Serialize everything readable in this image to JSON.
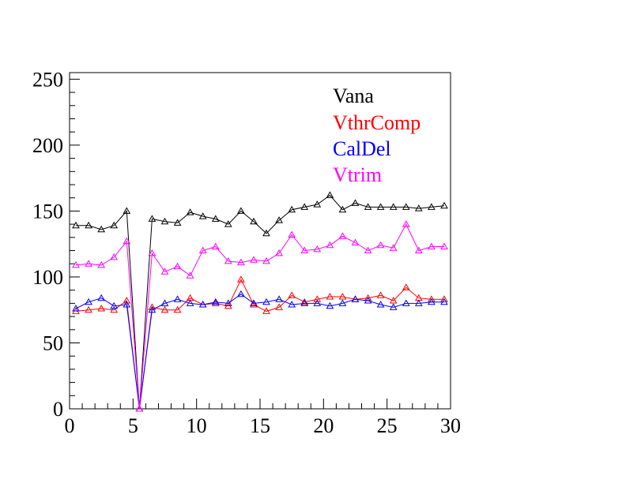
{
  "chart_data": {
    "type": "line",
    "title": "",
    "xlabel": "",
    "ylabel": "",
    "xlim": [
      0,
      30
    ],
    "ylim": [
      0,
      255
    ],
    "x_ticks": [
      0,
      5,
      10,
      15,
      20,
      25,
      30
    ],
    "y_ticks": [
      0,
      50,
      100,
      150,
      200,
      250
    ],
    "x_tick_labels": [
      "0",
      "5",
      "10",
      "15",
      "20",
      "25",
      "30"
    ],
    "y_tick_labels": [
      "0",
      "50",
      "100",
      "150",
      "200",
      "250"
    ],
    "grid": false,
    "legend_placement": "top-right",
    "marker": "open-triangle",
    "x": [
      0.5,
      1.5,
      2.5,
      3.5,
      4.5,
      5.5,
      6.5,
      7.5,
      8.5,
      9.5,
      10.5,
      11.5,
      12.5,
      13.5,
      14.5,
      15.5,
      16.5,
      17.5,
      18.5,
      19.5,
      20.5,
      21.5,
      22.5,
      23.5,
      24.5,
      25.5,
      26.5,
      27.5,
      28.5,
      29.5
    ],
    "series": [
      {
        "name": "Vana",
        "color": "#000000",
        "values": [
          139,
          139,
          136,
          139,
          150,
          0,
          144,
          142,
          141,
          149,
          146,
          144,
          140,
          150,
          142,
          133,
          143,
          151,
          153,
          155,
          162,
          151,
          156,
          153,
          153,
          153,
          153,
          152,
          153,
          154
        ]
      },
      {
        "name": "VthrComp",
        "color": "#ff0000",
        "values": [
          74,
          75,
          76,
          75,
          82,
          0,
          77,
          75,
          75,
          84,
          79,
          80,
          78,
          98,
          79,
          74,
          77,
          86,
          81,
          83,
          85,
          85,
          83,
          84,
          86,
          82,
          92,
          84,
          83,
          83
        ]
      },
      {
        "name": "CalDel",
        "color": "#0000ff",
        "values": [
          76,
          81,
          84,
          78,
          79,
          0,
          75,
          80,
          83,
          80,
          79,
          81,
          80,
          87,
          80,
          81,
          83,
          79,
          80,
          80,
          78,
          80,
          83,
          82,
          79,
          77,
          80,
          80,
          81,
          81
        ]
      },
      {
        "name": "Vtrim",
        "color": "#ff00ff",
        "values": [
          109,
          110,
          109,
          115,
          127,
          0,
          118,
          104,
          108,
          101,
          120,
          123,
          112,
          111,
          113,
          112,
          118,
          132,
          120,
          121,
          124,
          131,
          126,
          120,
          124,
          122,
          140,
          120,
          123,
          123
        ]
      }
    ]
  }
}
